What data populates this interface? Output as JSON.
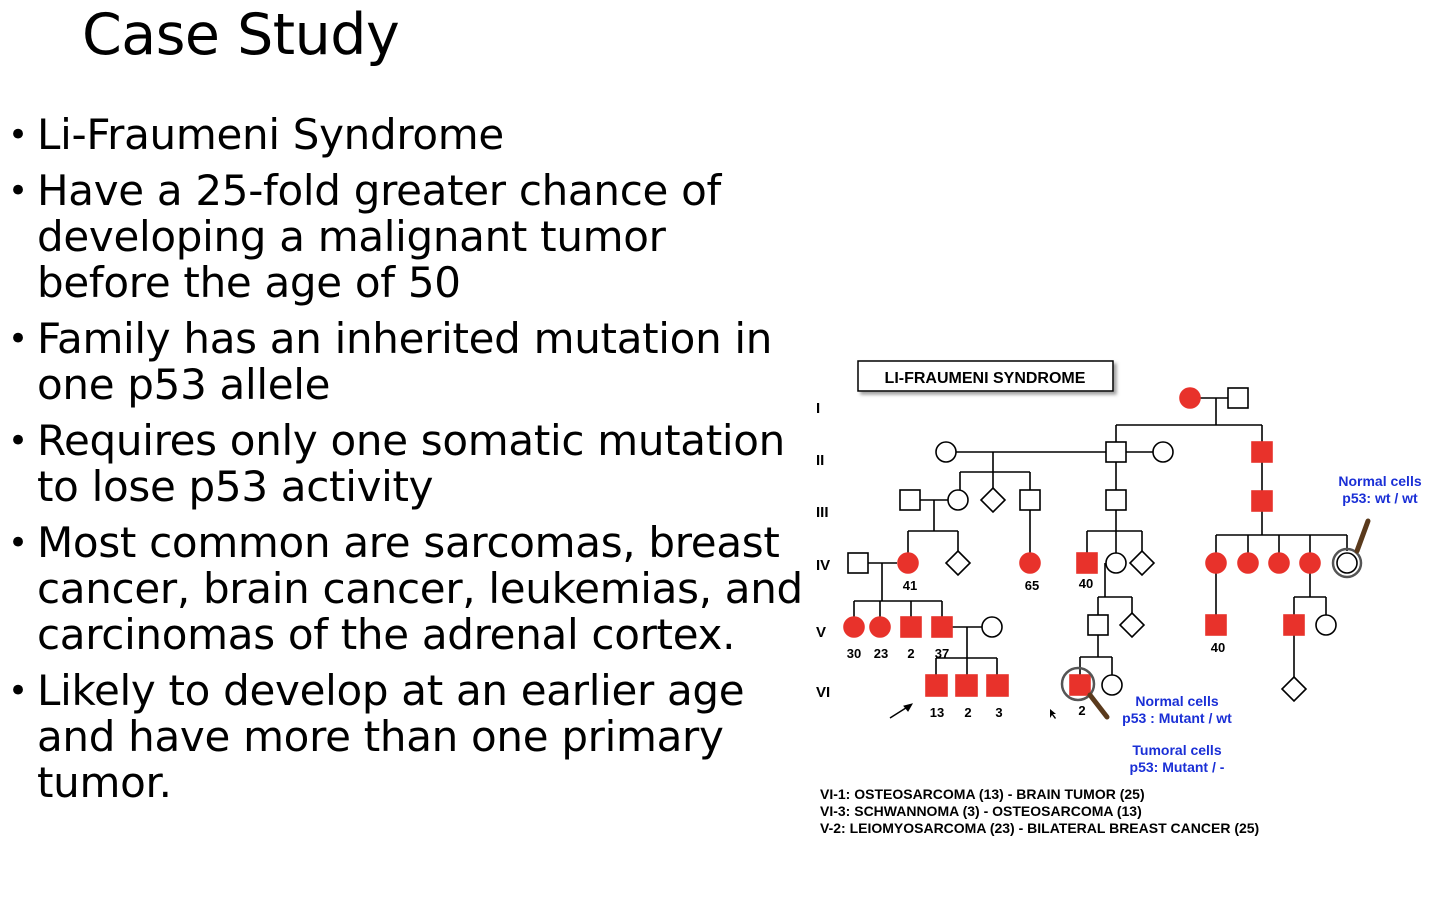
{
  "title": "Case Study",
  "bullets": [
    {
      "lines": [
        "Li-Fraumeni Syndrome"
      ]
    },
    {
      "lines": [
        "Have a 25-fold greater chance of",
        "developing a malignant tumor",
        "before the age of 50"
      ]
    },
    {
      "lines": [
        "Family has an inherited mutation in",
        "one p53 allele"
      ]
    },
    {
      "lines": [
        "Requires only one somatic mutation",
        "to lose p53 activity"
      ]
    },
    {
      "lines": [
        "Most common are sarcomas, breast",
        "cancer, brain cancer, leukemias, and",
        "carcinomas of the adrenal cortex."
      ]
    },
    {
      "lines": [
        "Likely to develop at an earlier age",
        "and have more than one primary",
        "tumor."
      ]
    }
  ],
  "pedigree": {
    "title": "LI-FRAUMENI SYNDROME",
    "generations": [
      "I",
      "II",
      "III",
      "IV",
      "V",
      "VI"
    ],
    "ages": {
      "iv_41": "41",
      "iv_65": "65",
      "iv_40": "40",
      "v_30": "30",
      "v_23": "23",
      "v_2": "2",
      "v_37": "37",
      "v_40": "40",
      "vi_13": "13",
      "vi_2a": "2",
      "vi_3": "3",
      "vi_2b": "2"
    },
    "normal_cells_right": {
      "label": "Normal cells",
      "value": "p53: wt / wt"
    },
    "normal_cells_mid": {
      "label": "Normal cells",
      "value": "p53 : Mutant / wt"
    },
    "tumoral_cells": {
      "label": "Tumoral cells",
      "value": "p53: Mutant / -"
    },
    "notes": [
      "VI-1: OSTEOSARCOMA (13) - BRAIN TUMOR (25)",
      "VI-3: SCHWANNOMA (3) - OSTEOSARCOMA (13)",
      "V-2: LEIOMYOSARCOMA (23) - BILATERAL BREAST CANCER (25)"
    ],
    "colors": {
      "affected": "#e8322b",
      "label_blue": "#1a2fd6",
      "outline": "#000000"
    }
  }
}
